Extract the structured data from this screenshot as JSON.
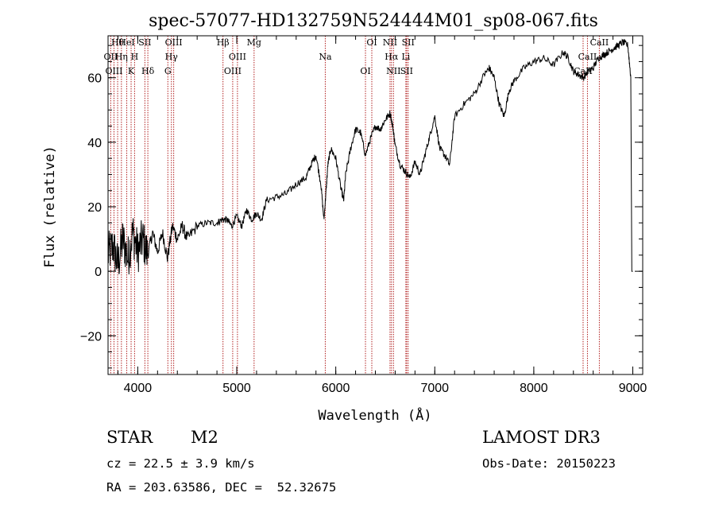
{
  "chart_data": {
    "type": "line",
    "title": "spec-57077-HD132759N524444M01_sp08-067.fits",
    "xlabel": "Wavelength (Å)",
    "ylabel": "Flux (relative)",
    "xlim": [
      3700,
      9100
    ],
    "ylim": [
      -32,
      73
    ],
    "xticks": [
      "4000",
      "5000",
      "6000",
      "7000",
      "8000",
      "9000"
    ],
    "yticks": [
      "-20",
      "0",
      "20",
      "40",
      "60"
    ],
    "grid": false,
    "series": [
      {
        "x": [
          3700,
          3750,
          3800,
          3850,
          3900,
          3950,
          4000,
          4050,
          4100,
          4150,
          4200,
          4250,
          4300,
          4350,
          4400,
          4450,
          4500,
          4600,
          4700,
          4800,
          4850,
          4900,
          4950,
          5000,
          5050,
          5100,
          5150,
          5200,
          5250,
          5300,
          5400,
          5500,
          5600,
          5700,
          5750,
          5800,
          5850,
          5880,
          5900,
          5920,
          5950,
          6000,
          6050,
          6080,
          6100,
          6150,
          6200,
          6250,
          6300,
          6350,
          6400,
          6450,
          6500,
          6550,
          6580,
          6600,
          6650,
          6700,
          6750,
          6800,
          6850,
          6900,
          6950,
          7000,
          7050,
          7100,
          7150,
          7200,
          7300,
          7400,
          7500,
          7550,
          7600,
          7650,
          7700,
          7750,
          7800,
          7900,
          8000,
          8100,
          8200,
          8300,
          8350,
          8400,
          8450,
          8500,
          8550,
          8600,
          8650,
          8700,
          8750,
          8800,
          8850,
          8900,
          8950,
          8980
        ],
        "y": [
          5,
          8,
          2,
          10,
          4,
          12,
          6,
          10,
          5,
          12,
          6,
          12,
          4,
          14,
          10,
          14,
          10,
          14,
          15,
          15,
          16,
          16,
          14,
          17,
          14,
          19,
          16,
          18,
          16,
          22,
          23,
          24,
          27,
          29,
          33,
          36,
          27,
          16,
          24,
          33,
          38,
          35,
          26,
          22,
          30,
          38,
          44,
          43,
          36,
          41,
          45,
          44,
          47,
          49,
          44,
          39,
          33,
          31,
          29,
          34,
          30,
          36,
          42,
          48,
          38,
          36,
          33,
          48,
          52,
          55,
          61,
          63,
          60,
          52,
          48,
          56,
          59,
          63,
          65,
          66,
          64,
          68,
          66,
          62,
          61,
          60,
          62,
          63,
          66,
          67,
          68,
          69,
          70,
          71,
          70,
          60
        ]
      }
    ],
    "line_labels": [
      {
        "label": "Hθ",
        "x": 3797
      },
      {
        "label": "OII",
        "x": 3727
      },
      {
        "label": "OIII",
        "x": 3760
      },
      {
        "label": "HeI",
        "x": 3889
      },
      {
        "label": "Hη",
        "x": 3835
      },
      {
        "label": "K",
        "x": 3933
      },
      {
        "label": "SII",
        "x": 4072
      },
      {
        "label": "H",
        "x": 3968
      },
      {
        "label": "Hδ",
        "x": 4102
      },
      {
        "label": "OIII",
        "x": 4363
      },
      {
        "label": "Hγ",
        "x": 4340
      },
      {
        "label": "G",
        "x": 4304
      },
      {
        "label": "Hβ",
        "x": 4861
      },
      {
        "label": "OIII",
        "x": 5007
      },
      {
        "label": "OIII",
        "x": 4959
      },
      {
        "label": "Mg",
        "x": 5175
      },
      {
        "label": "Na",
        "x": 5894
      },
      {
        "label": "OI",
        "x": 6300
      },
      {
        "label": "OI",
        "x": 6364
      },
      {
        "label": "Hα",
        "x": 6563
      },
      {
        "label": "SII",
        "x": 6716
      },
      {
        "label": "NII",
        "x": 6548
      },
      {
        "label": "Li",
        "x": 6708
      },
      {
        "label": "NII",
        "x": 6583
      },
      {
        "label": "SII",
        "x": 6731
      },
      {
        "label": "CaII",
        "x": 8542
      },
      {
        "label": "CaII",
        "x": 8498
      },
      {
        "label": "CaII",
        "x": 8662
      }
    ]
  },
  "info": {
    "obj_type": "STAR",
    "subclass": "M2",
    "survey": "LAMOST DR3",
    "cz": "cz = 22.5 ± 3.9 km/s",
    "obs_date": "Obs-Date: 20150223",
    "radec": "RA = 203.63586, DEC =  52.32675"
  },
  "colors": {
    "line_marker": "#b22222",
    "spectrum": "#000000"
  }
}
